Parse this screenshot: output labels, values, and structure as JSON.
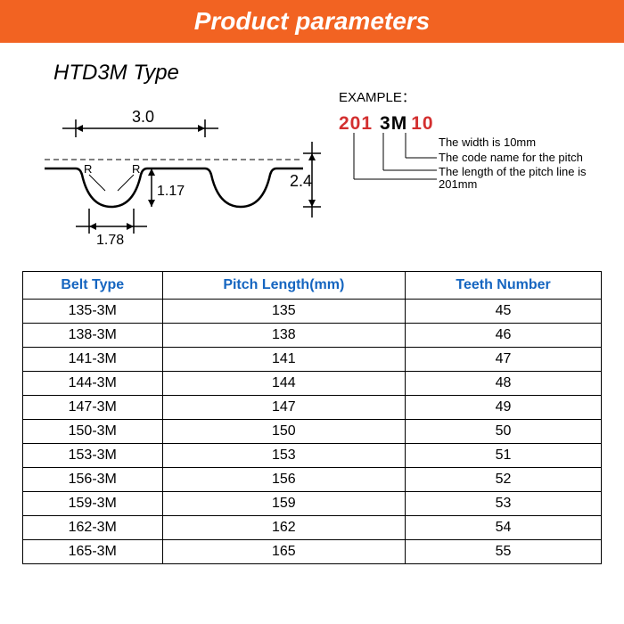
{
  "header": {
    "title": "Product parameters"
  },
  "diagram": {
    "type_label": "HTD3M Type",
    "dimensions": {
      "pitch": "3.0",
      "tooth_height": "1.17",
      "total_height": "2.4",
      "tooth_width": "1.78",
      "radius_label": "R"
    },
    "colors": {
      "stroke": "#000000",
      "dashed": "#000000"
    }
  },
  "example": {
    "title": "EXAMPLE：",
    "parts": {
      "length": "201",
      "pitch_code": "3M",
      "width": "10"
    },
    "explanations": [
      "The width is 10mm",
      "The code name for the pitch",
      "The length of the pitch line is 201mm"
    ]
  },
  "table": {
    "columns": [
      "Belt Type",
      "Pitch Length(mm)",
      "Teeth Number"
    ],
    "rows": [
      [
        "135-3M",
        "135",
        "45"
      ],
      [
        "138-3M",
        "138",
        "46"
      ],
      [
        "141-3M",
        "141",
        "47"
      ],
      [
        "144-3M",
        "144",
        "48"
      ],
      [
        "147-3M",
        "147",
        "49"
      ],
      [
        "150-3M",
        "150",
        "50"
      ],
      [
        "153-3M",
        "153",
        "51"
      ],
      [
        "156-3M",
        "156",
        "52"
      ],
      [
        "159-3M",
        "159",
        "53"
      ],
      [
        "162-3M",
        "162",
        "54"
      ],
      [
        "165-3M",
        "165",
        "55"
      ]
    ],
    "header_color": "#1565c0",
    "border_color": "#000000"
  }
}
